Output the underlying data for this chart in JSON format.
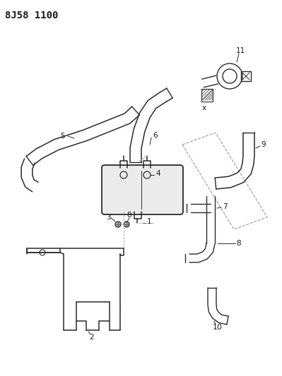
{
  "title": "8J58 1100",
  "bg_color": "#ffffff",
  "line_color": "#2a2a2a",
  "label_color": "#1a1a1a",
  "title_fontsize": 10,
  "label_fontsize": 7.5,
  "figsize": [
    3.99,
    5.33
  ],
  "dpi": 100,
  "parts": {
    "part1_label": "1",
    "part2_label": "2",
    "part3_label": "3",
    "part4_label": "4",
    "part5_label": "5",
    "part6_label": "6",
    "part7_label": "7",
    "part8_label": "8",
    "part9_label": "9",
    "part10_label": "10",
    "part11_label": "11",
    "partx_label": "x"
  }
}
